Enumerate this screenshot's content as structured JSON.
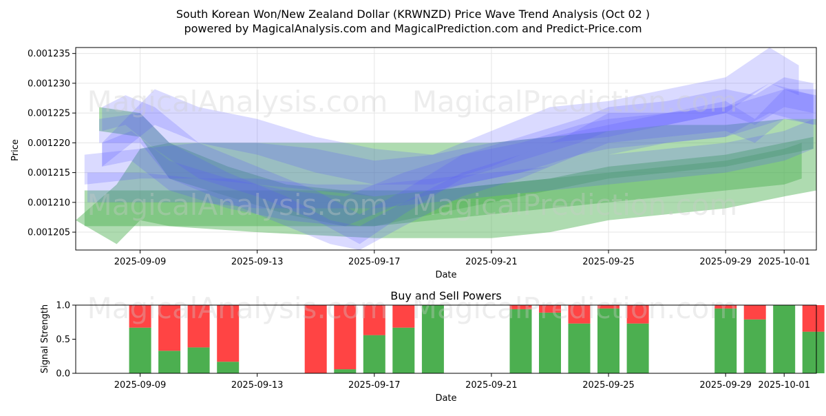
{
  "chart_data": [
    {
      "type": "area",
      "title_line1": "South Korean Won/New Zealand Dollar (KRWNZD) Price Wave Trend Analysis (Oct 02 )",
      "title_line2": "powered by MagicalAnalysis.com and MagicalPrediction.com and Predict-Price.com",
      "xlabel": "Date",
      "ylabel": "Price",
      "xlim_days": [
        -2.2,
        23.1
      ],
      "ylim": [
        0.001202,
        0.001236
      ],
      "x_ticks": [
        {
          "day": 0,
          "label": "2025-09-09"
        },
        {
          "day": 4,
          "label": "2025-09-13"
        },
        {
          "day": 8,
          "label": "2025-09-17"
        },
        {
          "day": 12,
          "label": "2025-09-21"
        },
        {
          "day": 16,
          "label": "2025-09-25"
        },
        {
          "day": 20,
          "label": "2025-09-29"
        },
        {
          "day": 22,
          "label": "2025-10-01"
        }
      ],
      "y_ticks": [
        {
          "value": 0.001205,
          "label": "0.001205"
        },
        {
          "value": 0.00121,
          "label": "0.001210"
        },
        {
          "value": 0.001215,
          "label": "0.001215"
        },
        {
          "value": 0.00122,
          "label": "0.001220"
        },
        {
          "value": 0.001225,
          "label": "0.001225"
        },
        {
          "value": 0.00123,
          "label": "0.001230"
        },
        {
          "value": 0.001235,
          "label": "0.001235"
        }
      ],
      "green_bands": [
        {
          "x": [
            -2.2,
            -0.8,
            0,
            1,
            4,
            8,
            10,
            12,
            14,
            16,
            18,
            20,
            22,
            23.1
          ],
          "upper": [
            0.001207,
            0.001213,
            0.001219,
            0.00122,
            0.00122,
            0.00122,
            0.00122,
            0.00122,
            0.001221,
            0.001222,
            0.001223,
            0.001223,
            0.001224,
            0.001224
          ],
          "lower": [
            0.001207,
            0.001203,
            0.001207,
            0.001206,
            0.001205,
            0.001204,
            0.001204,
            0.001204,
            0.001205,
            0.001207,
            0.001208,
            0.001209,
            0.001211,
            0.001212
          ]
        },
        {
          "x": [
            -1.9,
            0,
            2,
            4,
            6,
            8,
            10,
            12,
            14,
            16,
            18,
            20,
            22,
            22.6
          ],
          "upper": [
            0.001212,
            0.001212,
            0.001212,
            0.001212,
            0.001212,
            0.001212,
            0.001212,
            0.001213,
            0.001214,
            0.001215,
            0.001216,
            0.001217,
            0.001219,
            0.00122
          ],
          "lower": [
            0.001206,
            0.001206,
            0.001206,
            0.001206,
            0.001206,
            0.001206,
            0.001207,
            0.001208,
            0.001209,
            0.00121,
            0.001211,
            0.001212,
            0.001213,
            0.001214
          ]
        },
        {
          "x": [
            -1.4,
            0,
            1,
            3,
            5,
            7,
            8,
            10,
            12,
            14,
            16,
            18,
            20,
            22,
            23
          ],
          "upper": [
            0.001226,
            0.001225,
            0.00122,
            0.001216,
            0.001213,
            0.001212,
            0.001211,
            0.001212,
            0.001213,
            0.001214,
            0.001216,
            0.001217,
            0.001218,
            0.00122,
            0.001221
          ],
          "lower": [
            0.001222,
            0.001221,
            0.001214,
            0.001211,
            0.001208,
            0.001206,
            0.001206,
            0.001208,
            0.00121,
            0.001212,
            0.001214,
            0.001215,
            0.001216,
            0.001218,
            0.001219
          ]
        }
      ],
      "blue_bands": [
        {
          "x": [
            -1.3,
            -0.5,
            0.5,
            2,
            4,
            6,
            7.5,
            9,
            11,
            13,
            15,
            16,
            18,
            20,
            21,
            22,
            23
          ],
          "upper": [
            0.001226,
            0.001228,
            0.001226,
            0.00122,
            0.001216,
            0.001212,
            0.001208,
            0.001212,
            0.001218,
            0.001221,
            0.001224,
            0.001226,
            0.001227,
            0.001229,
            0.001228,
            0.001231,
            0.00123
          ],
          "lower": [
            0.001222,
            0.001223,
            0.001219,
            0.001214,
            0.001211,
            0.001207,
            0.001203,
            0.001208,
            0.001214,
            0.001217,
            0.00122,
            0.001222,
            0.001223,
            0.001225,
            0.001223,
            0.001226,
            0.001225
          ]
        },
        {
          "x": [
            -1.4,
            0,
            1,
            3,
            5,
            6.5,
            7.5,
            9,
            11,
            13,
            14.5,
            16,
            18,
            20,
            21,
            22,
            23.1
          ],
          "upper": [
            0.001224,
            0.001225,
            0.00122,
            0.001215,
            0.001211,
            0.001207,
            0.001206,
            0.00121,
            0.001215,
            0.001218,
            0.001221,
            0.001225,
            0.001225,
            0.001227,
            0.001224,
            0.001229,
            0.001228
          ],
          "lower": [
            0.00122,
            0.00122,
            0.001214,
            0.00121,
            0.001206,
            0.001203,
            0.001202,
            0.001206,
            0.001211,
            0.001214,
            0.001217,
            0.00122,
            0.001221,
            0.001222,
            0.00122,
            0.001224,
            0.001223
          ]
        },
        {
          "x": [
            -1.3,
            -0.3,
            1,
            3,
            5,
            7,
            9,
            11,
            13,
            15,
            16,
            18,
            20,
            21.5,
            23
          ],
          "upper": [
            0.00122,
            0.001222,
            0.001217,
            0.001214,
            0.001212,
            0.001211,
            0.001215,
            0.001218,
            0.00122,
            0.001223,
            0.001224,
            0.001225,
            0.001226,
            0.00123,
            0.001228
          ],
          "lower": [
            0.001216,
            0.001217,
            0.001212,
            0.001209,
            0.001207,
            0.001206,
            0.00121,
            0.001213,
            0.001215,
            0.001218,
            0.001219,
            0.00122,
            0.001221,
            0.001225,
            0.001223
          ]
        },
        {
          "x": [
            -1.9,
            0,
            2,
            4,
            6,
            8,
            10,
            12,
            14,
            16,
            18,
            20,
            22,
            23.1
          ],
          "upper": [
            0.001218,
            0.001219,
            0.00122,
            0.00122,
            0.001219,
            0.001217,
            0.001218,
            0.00122,
            0.001221,
            0.001223,
            0.001225,
            0.001226,
            0.001229,
            0.001229
          ],
          "lower": [
            0.001213,
            0.001214,
            0.001214,
            0.001213,
            0.001212,
            0.001211,
            0.001212,
            0.001214,
            0.001216,
            0.001218,
            0.00122,
            0.001221,
            0.001224,
            0.001224
          ]
        },
        {
          "x": [
            -1.8,
            0,
            2,
            4,
            6,
            8,
            10,
            12,
            14,
            16,
            18,
            20,
            22,
            23
          ],
          "upper": [
            0.001215,
            0.001215,
            0.001214,
            0.001214,
            0.001213,
            0.001213,
            0.001214,
            0.001215,
            0.001216,
            0.001218,
            0.001219,
            0.00122,
            0.001222,
            0.001224
          ],
          "lower": [
            0.00121,
            0.00121,
            0.00121,
            0.001209,
            0.001209,
            0.001209,
            0.00121,
            0.001211,
            0.001212,
            0.001213,
            0.001214,
            0.001215,
            0.001217,
            0.001219
          ]
        },
        {
          "x": [
            -1.3,
            0.5,
            2,
            4,
            6,
            8,
            10,
            12,
            14,
            16,
            18,
            20,
            21.5,
            22.5
          ],
          "upper": [
            0.00122,
            0.001229,
            0.001226,
            0.001224,
            0.001221,
            0.001219,
            0.001218,
            0.001222,
            0.001226,
            0.001227,
            0.001229,
            0.001231,
            0.001236,
            0.001233
          ],
          "lower": [
            0.001216,
            0.001223,
            0.00122,
            0.001218,
            0.001215,
            0.001213,
            0.001213,
            0.001216,
            0.00122,
            0.001221,
            0.001223,
            0.001225,
            0.00123,
            0.001228
          ]
        }
      ],
      "watermarks": [
        "MagicalAnalysis.com",
        "MagicalPrediction.com"
      ]
    },
    {
      "type": "bar",
      "title": "Buy and Sell Powers",
      "xlabel": "Date",
      "ylabel": "Signal Strength",
      "ylim": [
        0,
        1
      ],
      "y_ticks": [
        "0.0",
        "0.5",
        "1.0"
      ],
      "x_ticks": [
        "2025-09-09",
        "2025-09-13",
        "2025-09-17",
        "2025-09-21",
        "2025-09-25",
        "2025-09-29",
        "2025-10-01"
      ],
      "series": [
        {
          "name": "Buy",
          "color": "#4caf50"
        },
        {
          "name": "Sell",
          "color": "#ff4444"
        }
      ],
      "bars": [
        {
          "day": 0,
          "buy": 0.67
        },
        {
          "day": 1,
          "buy": 0.33
        },
        {
          "day": 2,
          "buy": 0.38
        },
        {
          "day": 3,
          "buy": 0.17
        },
        {
          "day": 6,
          "buy": 0.0
        },
        {
          "day": 7,
          "buy": 0.06
        },
        {
          "day": 8,
          "buy": 0.56
        },
        {
          "day": 9,
          "buy": 0.67
        },
        {
          "day": 10,
          "buy": 1.0
        },
        {
          "day": 13,
          "buy": 0.94
        },
        {
          "day": 14,
          "buy": 0.89
        },
        {
          "day": 15,
          "buy": 0.73
        },
        {
          "day": 16,
          "buy": 0.95
        },
        {
          "day": 17,
          "buy": 0.73
        },
        {
          "day": 20,
          "buy": 0.95
        },
        {
          "day": 21,
          "buy": 0.79
        },
        {
          "day": 22,
          "buy": 1.0
        },
        {
          "day": 23,
          "buy": 0.61
        }
      ],
      "watermarks": [
        "MagicalAnalysis.com",
        "MagicalPrediction.com"
      ]
    }
  ]
}
